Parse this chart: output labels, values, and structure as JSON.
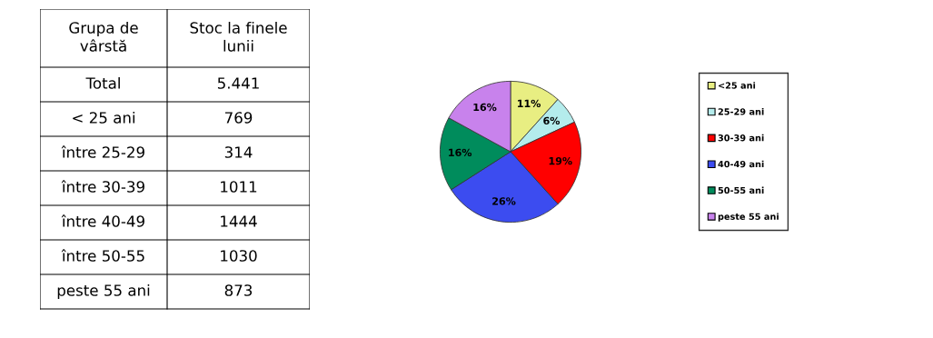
{
  "chart_data": [
    {
      "type": "other",
      "annotations": [
        "Grupa de\nvârstă",
        "Stoc la finele\nlunii",
        "Total",
        "5.441",
        "< 25 ani",
        "769",
        "între 25-29",
        "314",
        "între 30-39",
        "1011",
        "între 40-49",
        "1444",
        "între 50-55",
        "1030",
        "peste 55 ani",
        "873"
      ]
    },
    {
      "type": "pie",
      "categories": [
        "<25 ani",
        "25-29 ani",
        "30-39 ani",
        "40-49 ani",
        "50-55 ani",
        "peste 55 ani"
      ],
      "values": [
        11,
        6,
        19,
        26,
        16,
        16
      ],
      "value_labels": [
        "11%",
        "6%",
        "19%",
        "26%",
        "16%",
        "16%"
      ],
      "colors": [
        "#e8ee82",
        "#b4ecec",
        "#ff0000",
        "#3c4cf0",
        "#008c5c",
        "#c882ec"
      ],
      "legend": "right"
    }
  ]
}
